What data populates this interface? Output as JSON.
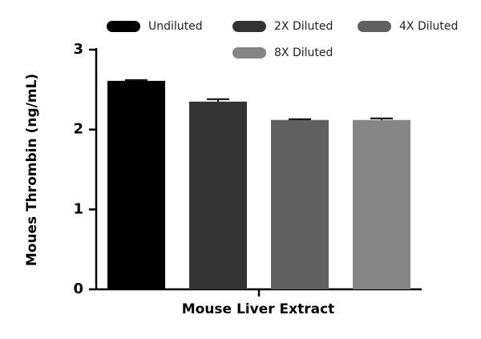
{
  "chart_data": {
    "type": "bar",
    "x_label": "Mouse Liver Extract",
    "y_label": "Moues Thrombin (ng/mL)",
    "categories": [
      null
    ],
    "series": [
      {
        "name": "Undiluted",
        "color": "#000000",
        "values": [
          2.61
        ],
        "errors": [
          0.01
        ]
      },
      {
        "name": "2X Diluted",
        "color": "#333333",
        "values": [
          2.35
        ],
        "errors": [
          0.03
        ]
      },
      {
        "name": "4X Diluted",
        "color": "#606060",
        "values": [
          2.12
        ],
        "errors": [
          0.01
        ]
      },
      {
        "name": "8X Diluted",
        "color": "#858585",
        "values": [
          2.12
        ],
        "errors": [
          0.02
        ]
      }
    ],
    "ylim": [
      0,
      3
    ],
    "yticks": [
      0,
      1,
      2,
      3
    ],
    "grid": false,
    "legend": "top"
  }
}
